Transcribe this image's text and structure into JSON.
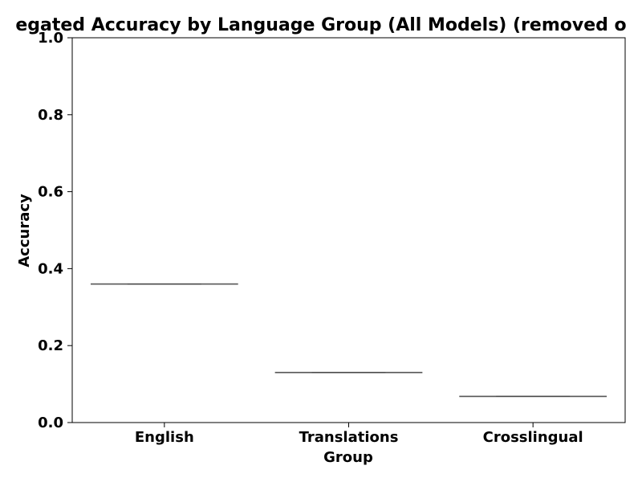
{
  "chart_data": {
    "type": "box",
    "title": "egated Accuracy by Language Group (All Models) (removed o",
    "xlabel": "Group",
    "ylabel": "Accuracy",
    "categories": [
      "English",
      "Translations",
      "Crosslingual"
    ],
    "values": [
      0.36,
      0.13,
      0.068
    ],
    "ylim": [
      0,
      1
    ],
    "yticks": [
      "0.0",
      "0.2",
      "0.4",
      "0.6",
      "0.8",
      "1.0"
    ],
    "grid": false,
    "legend": "none",
    "colors": {
      "axes": "#000000",
      "median_line": "#444444",
      "box_line": "#555555"
    }
  }
}
